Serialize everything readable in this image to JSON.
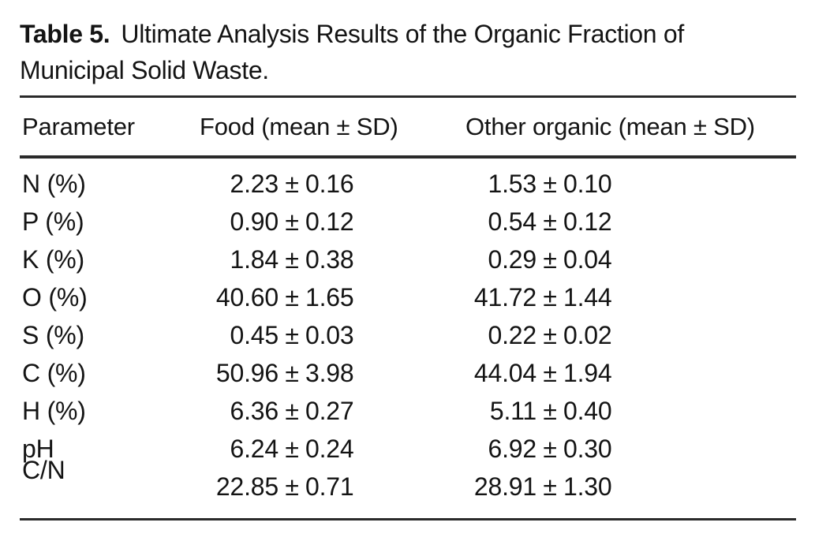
{
  "caption": {
    "label": "Table 5.",
    "text": "Ultimate Analysis Results of the Organic Fraction of Municipal Solid Waste."
  },
  "table": {
    "pm": "±",
    "columns": [
      "Parameter",
      "Food (mean ± SD)",
      "Other organic (mean ± SD)"
    ],
    "rows": [
      {
        "parameter": "N (%)",
        "food": {
          "mean": "2.23",
          "sd": "0.16"
        },
        "other": {
          "mean": "1.53",
          "sd": "0.10"
        }
      },
      {
        "parameter": "P (%)",
        "food": {
          "mean": "0.90",
          "sd": "0.12"
        },
        "other": {
          "mean": "0.54",
          "sd": "0.12"
        }
      },
      {
        "parameter": "K (%)",
        "food": {
          "mean": "1.84",
          "sd": "0.38"
        },
        "other": {
          "mean": "0.29",
          "sd": "0.04"
        }
      },
      {
        "parameter": "O (%)",
        "food": {
          "mean": "40.60",
          "sd": "1.65"
        },
        "other": {
          "mean": "41.72",
          "sd": "1.44"
        }
      },
      {
        "parameter": "S (%)",
        "food": {
          "mean": "0.45",
          "sd": "0.03"
        },
        "other": {
          "mean": "0.22",
          "sd": "0.02"
        }
      },
      {
        "parameter": "C (%)",
        "food": {
          "mean": "50.96",
          "sd": "3.98"
        },
        "other": {
          "mean": "44.04",
          "sd": "1.94"
        }
      },
      {
        "parameter": "H (%)",
        "food": {
          "mean": "6.36",
          "sd": "0.27"
        },
        "other": {
          "mean": "5.11",
          "sd": "0.40"
        }
      },
      {
        "parameter": "pH",
        "food": {
          "mean": "6.24",
          "sd": "0.24"
        },
        "other": {
          "mean": "6.92",
          "sd": "0.30"
        }
      },
      {
        "parameter": "C/N",
        "food": {
          "mean": "22.85",
          "sd": "0.71"
        },
        "other": {
          "mean": "28.91",
          "sd": "1.30"
        }
      }
    ]
  }
}
